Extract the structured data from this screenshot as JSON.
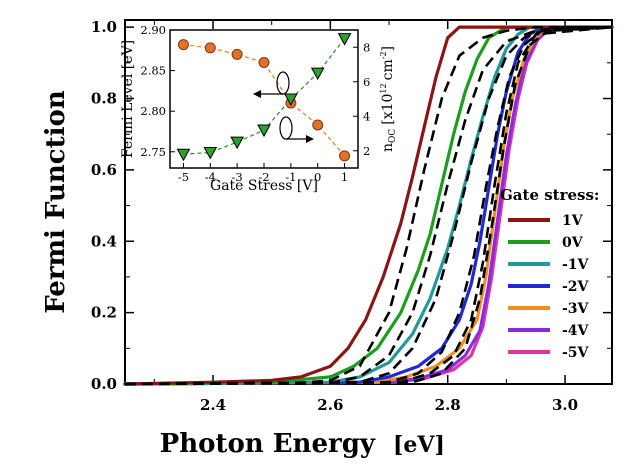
{
  "chart_data": [
    {
      "type": "line",
      "xlabel": "Photon Energy",
      "xunit": "[eV]",
      "ylabel": "Fermi Function",
      "xlim": [
        2.25,
        3.08
      ],
      "ylim": [
        0.0,
        1.02
      ],
      "xticks": [
        2.4,
        2.6,
        2.8,
        3.0
      ],
      "xtick_labels": [
        "2.4",
        "2.6",
        "2.8",
        "3.0"
      ],
      "yticks": [
        0.0,
        0.2,
        0.4,
        0.6,
        0.8,
        1.0
      ],
      "ytick_labels": [
        "0.0",
        "0.2",
        "0.4",
        "0.6",
        "0.8",
        "1.0"
      ],
      "grid": false,
      "legend": {
        "title": "Gate stress:",
        "placement": "lower-right"
      },
      "series": [
        {
          "name": "1V",
          "color": "#8b1414",
          "x": [
            2.25,
            2.4,
            2.5,
            2.55,
            2.6,
            2.63,
            2.66,
            2.69,
            2.72,
            2.74,
            2.76,
            2.78,
            2.8,
            2.82,
            3.08
          ],
          "y": [
            0.0,
            0.005,
            0.01,
            0.02,
            0.05,
            0.1,
            0.18,
            0.3,
            0.45,
            0.58,
            0.72,
            0.86,
            0.97,
            1.0,
            1.0
          ]
        },
        {
          "name": "0V",
          "color": "#1e9e1e",
          "x": [
            2.25,
            2.5,
            2.6,
            2.64,
            2.68,
            2.72,
            2.75,
            2.77,
            2.79,
            2.81,
            2.83,
            2.85,
            2.87,
            2.89,
            2.9,
            3.08
          ],
          "y": [
            0.0,
            0.005,
            0.02,
            0.05,
            0.1,
            0.2,
            0.32,
            0.42,
            0.56,
            0.7,
            0.82,
            0.91,
            0.97,
            0.99,
            1.0,
            1.0
          ]
        },
        {
          "name": "-1V",
          "color": "#229a9a",
          "x": [
            2.25,
            2.6,
            2.65,
            2.7,
            2.74,
            2.77,
            2.8,
            2.82,
            2.84,
            2.86,
            2.88,
            2.9,
            2.92,
            2.94,
            3.08
          ],
          "y": [
            0.0,
            0.005,
            0.02,
            0.06,
            0.14,
            0.24,
            0.38,
            0.5,
            0.63,
            0.75,
            0.86,
            0.94,
            0.98,
            1.0,
            1.0
          ]
        },
        {
          "name": "-2V",
          "color": "#1f2ad4",
          "x": [
            2.25,
            2.65,
            2.7,
            2.75,
            2.79,
            2.82,
            2.84,
            2.855,
            2.87,
            2.885,
            2.9,
            2.92,
            2.94,
            2.96,
            3.08
          ],
          "y": [
            0.0,
            0.005,
            0.02,
            0.05,
            0.1,
            0.18,
            0.28,
            0.4,
            0.55,
            0.7,
            0.82,
            0.93,
            0.98,
            1.0,
            1.0
          ]
        },
        {
          "name": "-3V",
          "color": "#f0901c",
          "x": [
            2.25,
            2.68,
            2.73,
            2.78,
            2.82,
            2.85,
            2.865,
            2.88,
            2.895,
            2.91,
            2.93,
            2.95,
            2.97,
            3.08
          ],
          "y": [
            0.0,
            0.005,
            0.02,
            0.05,
            0.1,
            0.18,
            0.3,
            0.48,
            0.66,
            0.8,
            0.91,
            0.97,
            1.0,
            1.0
          ]
        },
        {
          "name": "-4V",
          "color": "#8a2be2",
          "x": [
            2.25,
            2.7,
            2.75,
            2.8,
            2.83,
            2.855,
            2.87,
            2.885,
            2.9,
            2.915,
            2.93,
            2.95,
            2.97,
            3.08
          ],
          "y": [
            0.0,
            0.005,
            0.015,
            0.04,
            0.08,
            0.15,
            0.28,
            0.46,
            0.64,
            0.78,
            0.89,
            0.96,
            0.99,
            1.0
          ]
        },
        {
          "name": "-5V",
          "color": "#e0359f",
          "x": [
            2.25,
            2.71,
            2.76,
            2.81,
            2.84,
            2.86,
            2.875,
            2.89,
            2.905,
            2.92,
            2.935,
            2.955,
            2.975,
            3.08
          ],
          "y": [
            0.0,
            0.005,
            0.015,
            0.04,
            0.08,
            0.16,
            0.3,
            0.48,
            0.66,
            0.8,
            0.9,
            0.97,
            1.0,
            1.0
          ]
        }
      ],
      "fits": [
        {
          "x": [
            2.25,
            2.55,
            2.6,
            2.65,
            2.7,
            2.73,
            2.76,
            2.79,
            2.82,
            2.86,
            2.9,
            2.95,
            3.08
          ],
          "y": [
            0.0,
            0.003,
            0.01,
            0.05,
            0.2,
            0.38,
            0.6,
            0.8,
            0.92,
            0.97,
            0.99,
            1.0,
            1.0
          ]
        },
        {
          "x": [
            2.25,
            2.6,
            2.65,
            2.7,
            2.74,
            2.77,
            2.8,
            2.83,
            2.86,
            2.9,
            2.95,
            3.0,
            3.08
          ],
          "y": [
            0.0,
            0.003,
            0.02,
            0.08,
            0.2,
            0.36,
            0.56,
            0.74,
            0.88,
            0.96,
            0.99,
            1.0,
            1.0
          ]
        },
        {
          "x": [
            2.25,
            2.65,
            2.7,
            2.74,
            2.78,
            2.81,
            2.84,
            2.87,
            2.9,
            2.93,
            2.97,
            3.08
          ],
          "y": [
            0.0,
            0.005,
            0.03,
            0.1,
            0.24,
            0.42,
            0.62,
            0.8,
            0.92,
            0.97,
            0.995,
            1.0
          ]
        },
        {
          "x": [
            2.25,
            2.7,
            2.75,
            2.79,
            2.82,
            2.845,
            2.865,
            2.885,
            2.905,
            2.93,
            2.96,
            3.08
          ],
          "y": [
            0.0,
            0.005,
            0.03,
            0.09,
            0.2,
            0.36,
            0.55,
            0.72,
            0.86,
            0.95,
            0.99,
            1.0
          ]
        },
        {
          "x": [
            2.25,
            2.72,
            2.77,
            2.81,
            2.84,
            2.86,
            2.88,
            2.9,
            2.92,
            2.95,
            3.08
          ],
          "y": [
            0.0,
            0.005,
            0.03,
            0.08,
            0.18,
            0.34,
            0.56,
            0.76,
            0.9,
            0.98,
            1.0
          ]
        },
        {
          "x": [
            2.25,
            2.74,
            2.79,
            2.83,
            2.855,
            2.875,
            2.895,
            2.915,
            2.94,
            2.97,
            3.08
          ],
          "y": [
            0.0,
            0.005,
            0.03,
            0.1,
            0.24,
            0.44,
            0.66,
            0.84,
            0.95,
            0.99,
            1.0
          ]
        }
      ]
    },
    {
      "type": "line",
      "inset": true,
      "xlabel": "Gate Stress [V]",
      "ylabel_left": "Fermi Level [eV]",
      "ylabel_right_base": "n",
      "ylabel_right_sub": "OC",
      "ylabel_right_unit": "[x10",
      "ylabel_right_exp": "12",
      "ylabel_right_unit2": "cm",
      "ylabel_right_exp2": "-2",
      "ylabel_right_close": "]",
      "xlim": [
        -5.5,
        1.5
      ],
      "ylim_left": [
        2.73,
        2.9
      ],
      "ylim_right": [
        1.0,
        9.0
      ],
      "xticks": [
        -5,
        -4,
        -3,
        -2,
        -1,
        0,
        1
      ],
      "xtick_labels": [
        "-5",
        "-4",
        "-3",
        "-2",
        "-1",
        "0",
        "1"
      ],
      "yticks_left": [
        2.75,
        2.8,
        2.85,
        2.9
      ],
      "ytick_labels_left": [
        "2.75",
        "2.80",
        "2.85",
        "2.90"
      ],
      "yticks_right": [
        2,
        4,
        6,
        8
      ],
      "ytick_labels_right": [
        "2",
        "4",
        "6",
        "8"
      ],
      "fermi_level": {
        "color": "#e87e1c",
        "marker": "circle",
        "marker_fill": "#e2722a",
        "x": [
          -5,
          -4,
          -3,
          -2,
          -1,
          0,
          1
        ],
        "y": [
          2.882,
          2.878,
          2.87,
          2.86,
          2.81,
          2.783,
          2.745
        ]
      },
      "carrier_density": {
        "color": "#2e8b2e",
        "marker": "triangle-down",
        "marker_fill": "#2fa02f",
        "x": [
          -5,
          -4,
          -3,
          -2,
          -1,
          0,
          1
        ],
        "y": [
          1.8,
          1.9,
          2.5,
          3.2,
          5.0,
          6.5,
          8.5
        ]
      }
    }
  ]
}
